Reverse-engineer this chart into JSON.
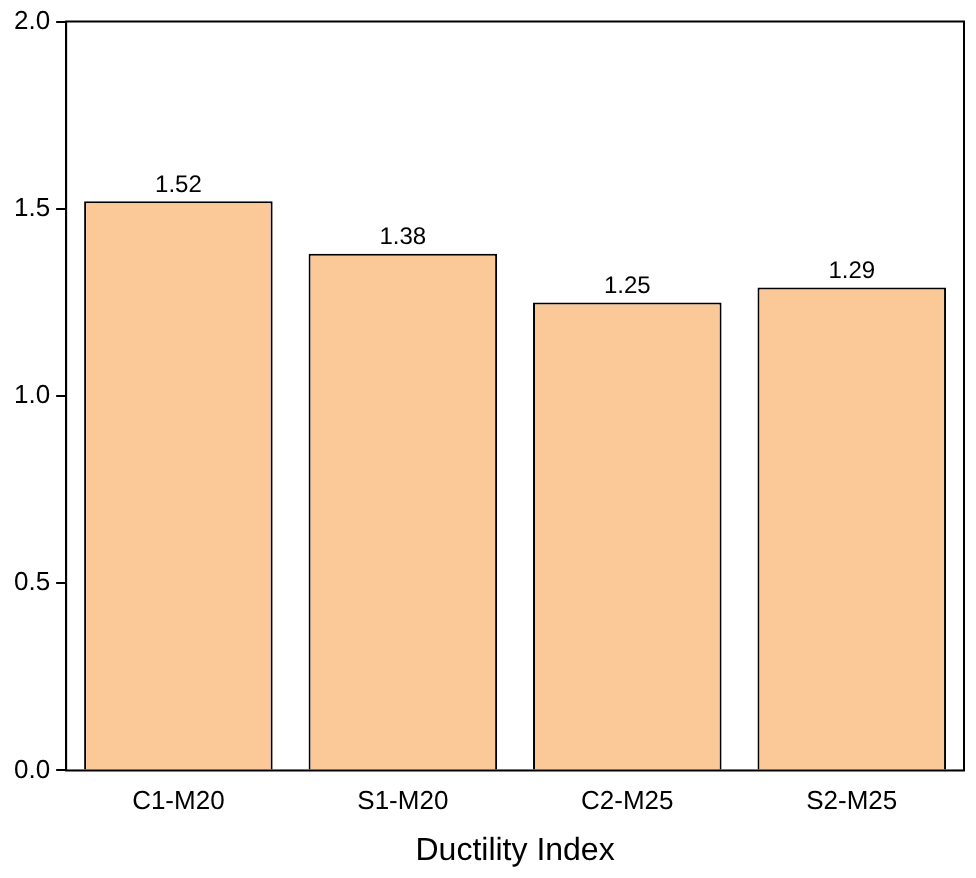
{
  "chart_data": {
    "type": "bar",
    "xlabel": "Ductility Index",
    "categories": [
      "C1-M20",
      "S1-M20",
      "C2-M25",
      "S2-M25"
    ],
    "values": [
      1.52,
      1.38,
      1.25,
      1.29
    ],
    "color": "#fbc898",
    "ylim": [
      0,
      2
    ],
    "yticks": [
      {
        "value": 0,
        "label": "0.0"
      },
      {
        "value": 0.5,
        "label": "0.5"
      },
      {
        "value": 1,
        "label": "1.0"
      },
      {
        "value": 1.5,
        "label": "1.5"
      },
      {
        "value": 2,
        "label": "2.0"
      }
    ],
    "grid": false,
    "legend": false,
    "data_labels": true
  }
}
